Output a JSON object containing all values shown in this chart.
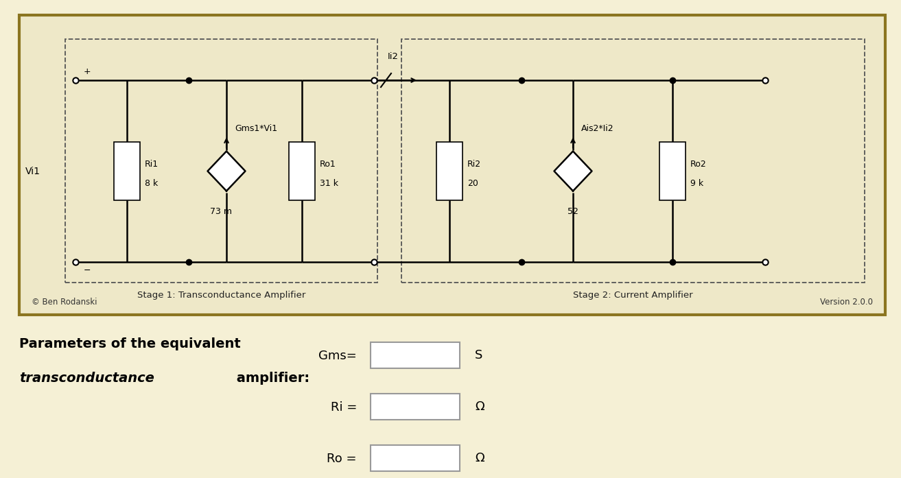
{
  "bg_color": "#f5f0d5",
  "circuit_bg": "#eee8c8",
  "border_color": "#8B7520",
  "wire_color": "#000000",
  "stage1_label": "Stage 1: Transconductance Amplifier",
  "stage2_label": "Stage 2: Current Amplifier",
  "copyright_text": "© Ben Rodanski",
  "version_text": "Version 2.0.0",
  "vi1_label": "Vi1",
  "gms1_label": "Gms1*Vi1",
  "gms1_val": "73 m",
  "ro1_top": "Ro1",
  "ro1_bot": "31 k",
  "ri1_top": "Ri1",
  "ri1_bot": "8 k",
  "ri2_top": "Ri2",
  "ri2_bot": "20",
  "ais2_label": "Ais2*Ii2",
  "ais2_val": "52",
  "ro2_top": "Ro2",
  "ro2_bot": "9 k",
  "ii2_label": "Ii2",
  "param_line1": "Parameters of the equivalent",
  "param_italic": "transconductance",
  "param_rest": " amplifier:",
  "gms_label": "Gms=",
  "ri_label": "Ri =",
  "ro_label": "Ro =",
  "s_unit": "S",
  "ohm_unit": "Ω",
  "fig_w": 13.13,
  "fig_h": 6.97,
  "dpi": 100
}
